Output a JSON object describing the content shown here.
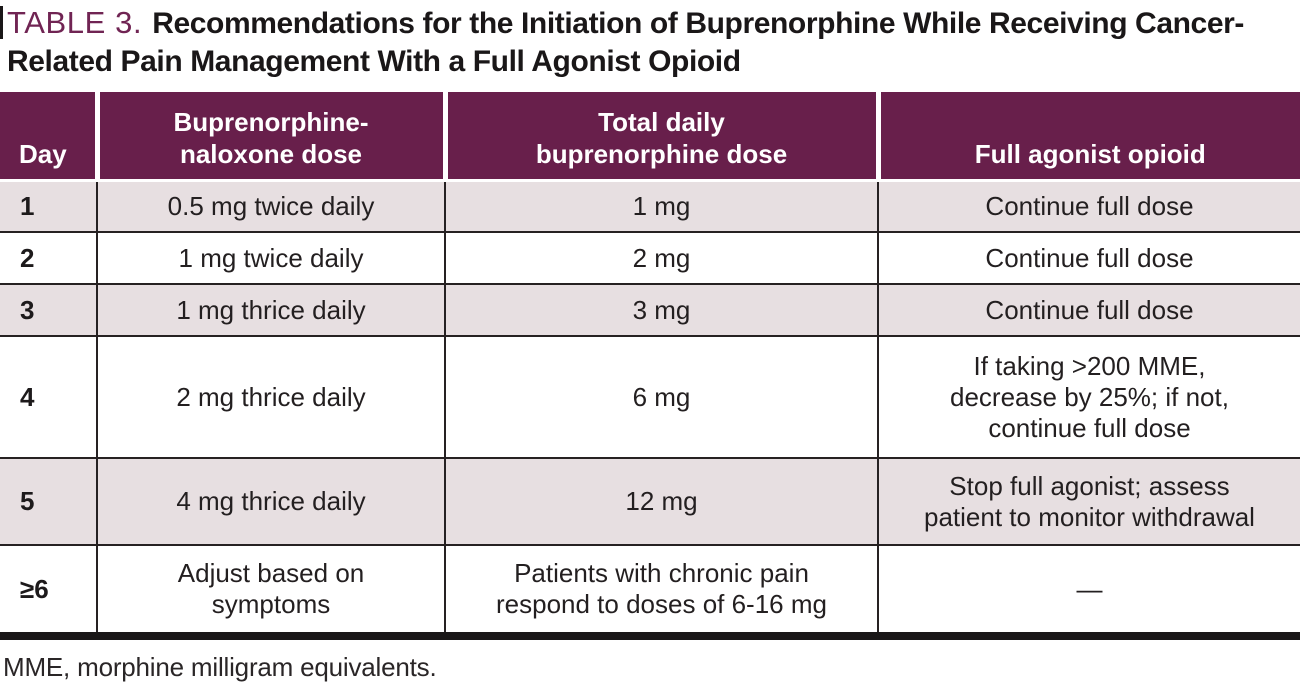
{
  "title": {
    "label": "TABLE 3.",
    "text": "Recommendations for the Initiation of Buprenorphine While Receiving Cancer-Related Pain Management With a Full Agonist Opioid"
  },
  "table": {
    "columns": [
      "Day",
      "Buprenorphine-\nnaloxone dose",
      "Total daily\nbuprenorphine dose",
      "Full agonist opioid"
    ],
    "rows": [
      {
        "cells": [
          "1",
          "0.5 mg twice daily",
          "1 mg",
          "Continue full dose"
        ]
      },
      {
        "cells": [
          "2",
          "1 mg twice daily",
          "2 mg",
          "Continue full dose"
        ]
      },
      {
        "cells": [
          "3",
          "1 mg thrice daily",
          "3 mg",
          "Continue full dose"
        ]
      },
      {
        "cells": [
          "4",
          "2 mg thrice daily",
          "6 mg",
          "If taking >200 MME,\ndecrease by 25%; if not,\ncontinue full dose"
        ]
      },
      {
        "cells": [
          "5",
          "4 mg thrice daily",
          "12 mg",
          "Stop full agonist; assess\npatient to monitor withdrawal"
        ]
      },
      {
        "cells": [
          "≥6",
          "Adjust based on\nsymptoms",
          "Patients with chronic pain\nrespond to doses of 6-16 mg",
          "—"
        ]
      }
    ]
  },
  "footnote": "MME, morphine milligram equivalents.",
  "colors": {
    "header_bg": "#681F4B",
    "row_shade": "#E7DFE1",
    "title_accent": "#702453",
    "body_text": "#231F20",
    "grid_line": "#262122",
    "bottom_rule": "#1a1718"
  }
}
